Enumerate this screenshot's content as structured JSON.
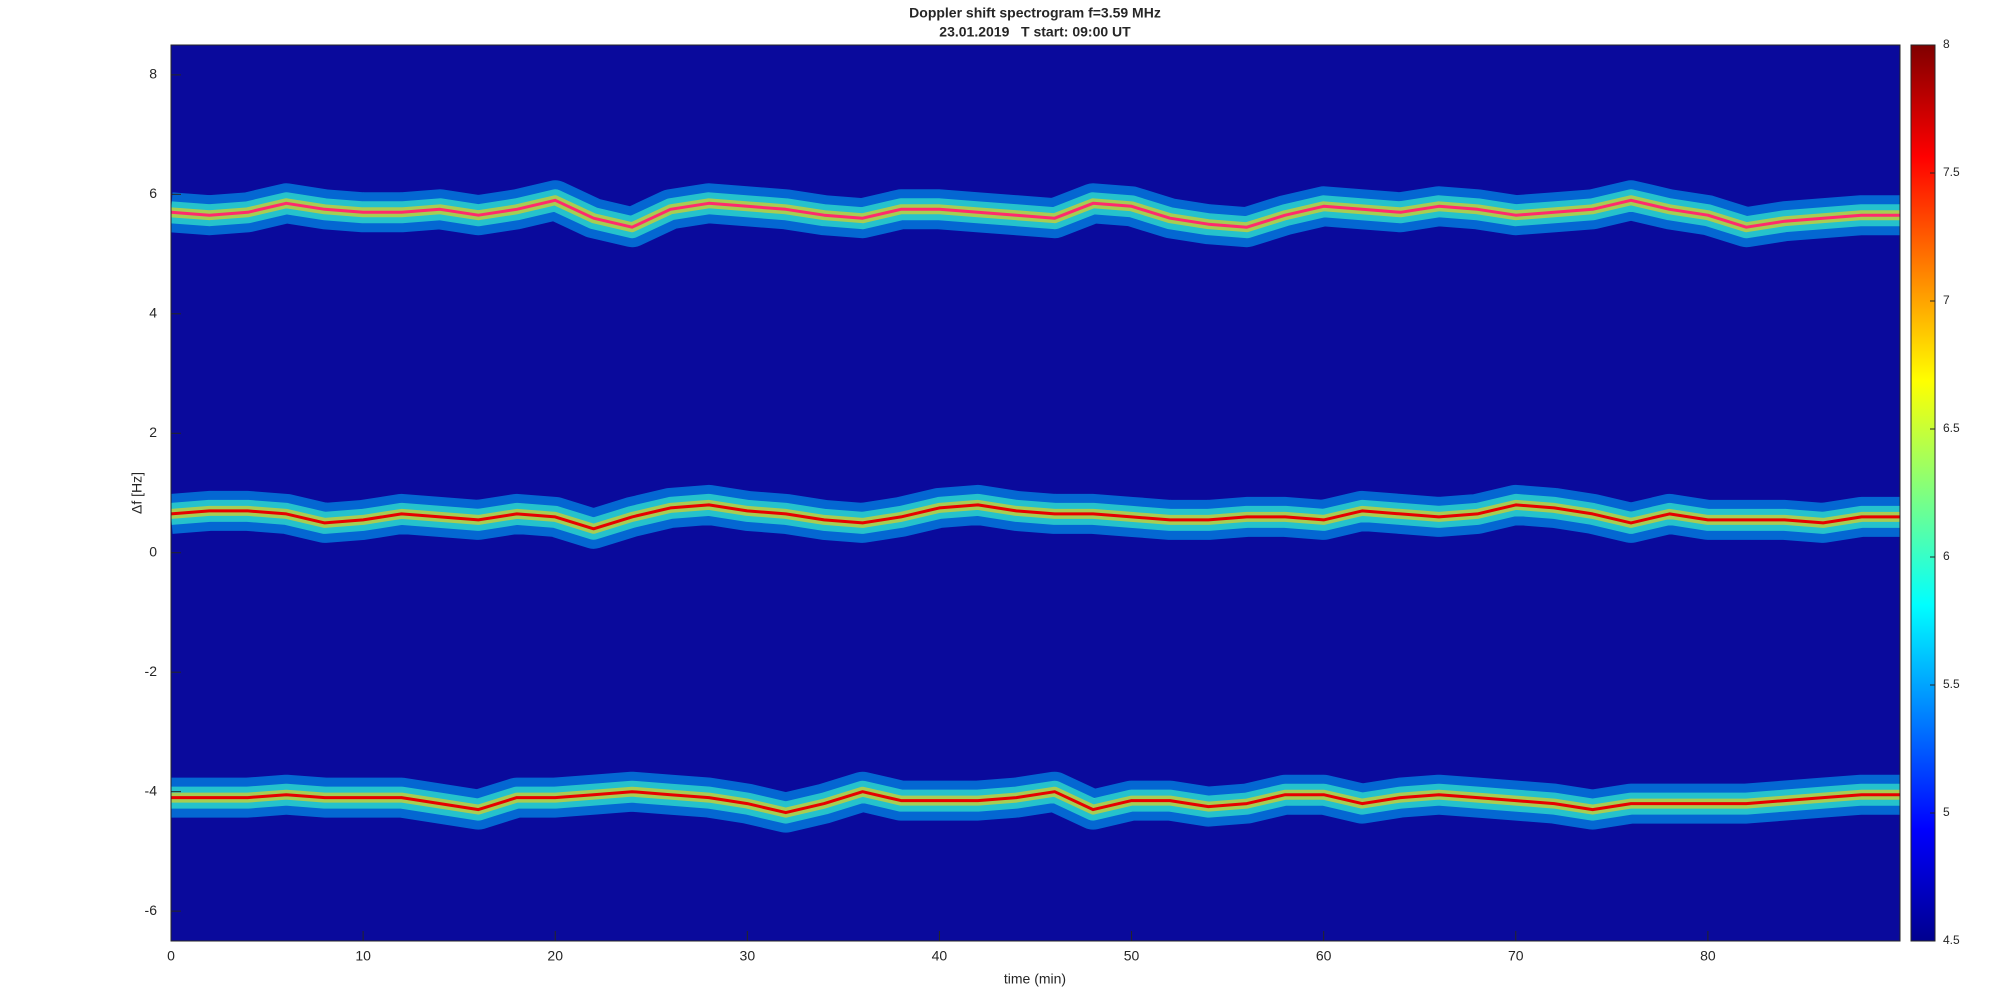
{
  "chart_data": {
    "type": "line",
    "title": "Doppler shift spectrogram f=3.59 MHz",
    "subtitle": "23.01.2019   T start: 09:00 UT",
    "x_label": "time (min)",
    "y_label": "Δf [Hz]",
    "x": [
      0,
      2,
      4,
      6,
      8,
      10,
      12,
      14,
      16,
      18,
      20,
      22,
      24,
      26,
      28,
      30,
      32,
      34,
      36,
      38,
      40,
      42,
      44,
      46,
      48,
      50,
      52,
      54,
      56,
      58,
      60,
      62,
      64,
      66,
      68,
      70,
      72,
      74,
      76,
      78,
      80,
      82,
      84,
      86,
      88,
      90
    ],
    "series": [
      {
        "color": "#ff2a6d",
        "values": [
          5.7,
          5.65,
          5.7,
          5.85,
          5.75,
          5.7,
          5.7,
          5.75,
          5.65,
          5.75,
          5.9,
          5.6,
          5.45,
          5.75,
          5.85,
          5.8,
          5.75,
          5.65,
          5.6,
          5.75,
          5.75,
          5.7,
          5.65,
          5.6,
          5.85,
          5.8,
          5.6,
          5.5,
          5.45,
          5.65,
          5.8,
          5.75,
          5.7,
          5.8,
          5.75,
          5.65,
          5.7,
          5.75,
          5.9,
          5.75,
          5.65,
          5.45,
          5.55,
          5.6,
          5.65,
          5.65
        ]
      },
      {
        "color": "#e60000",
        "values": [
          0.65,
          0.7,
          0.7,
          0.65,
          0.5,
          0.55,
          0.65,
          0.6,
          0.55,
          0.65,
          0.6,
          0.4,
          0.6,
          0.75,
          0.8,
          0.7,
          0.65,
          0.55,
          0.5,
          0.6,
          0.75,
          0.8,
          0.7,
          0.65,
          0.65,
          0.6,
          0.55,
          0.55,
          0.6,
          0.6,
          0.55,
          0.7,
          0.65,
          0.6,
          0.65,
          0.8,
          0.75,
          0.65,
          0.5,
          0.65,
          0.55,
          0.55,
          0.55,
          0.5,
          0.6,
          0.6
        ]
      },
      {
        "color": "#e60000",
        "values": [
          -4.1,
          -4.1,
          -4.1,
          -4.05,
          -4.1,
          -4.1,
          -4.1,
          -4.2,
          -4.3,
          -4.1,
          -4.1,
          -4.05,
          -4.0,
          -4.05,
          -4.1,
          -4.2,
          -4.35,
          -4.2,
          -4.0,
          -4.15,
          -4.15,
          -4.15,
          -4.1,
          -4.0,
          -4.3,
          -4.15,
          -4.15,
          -4.25,
          -4.2,
          -4.05,
          -4.05,
          -4.2,
          -4.1,
          -4.05,
          -4.1,
          -4.15,
          -4.2,
          -4.3,
          -4.2,
          -4.2,
          -4.2,
          -4.2,
          -4.15,
          -4.1,
          -4.05,
          -4.05
        ]
      }
    ],
    "xlim": [
      0,
      90
    ],
    "xticks": [
      0,
      10,
      20,
      30,
      40,
      50,
      60,
      70,
      80
    ],
    "ylim": [
      -6.5,
      8.5
    ],
    "yticks": [
      -6,
      -4,
      -2,
      0,
      2,
      4,
      6,
      8
    ],
    "background_color": "#0a0a9c",
    "colorbar": {
      "lim": [
        4.5,
        8
      ],
      "ticks": [
        4.5,
        5,
        5.5,
        6,
        6.5,
        7,
        7.5,
        8
      ],
      "colormap": "jet"
    }
  }
}
